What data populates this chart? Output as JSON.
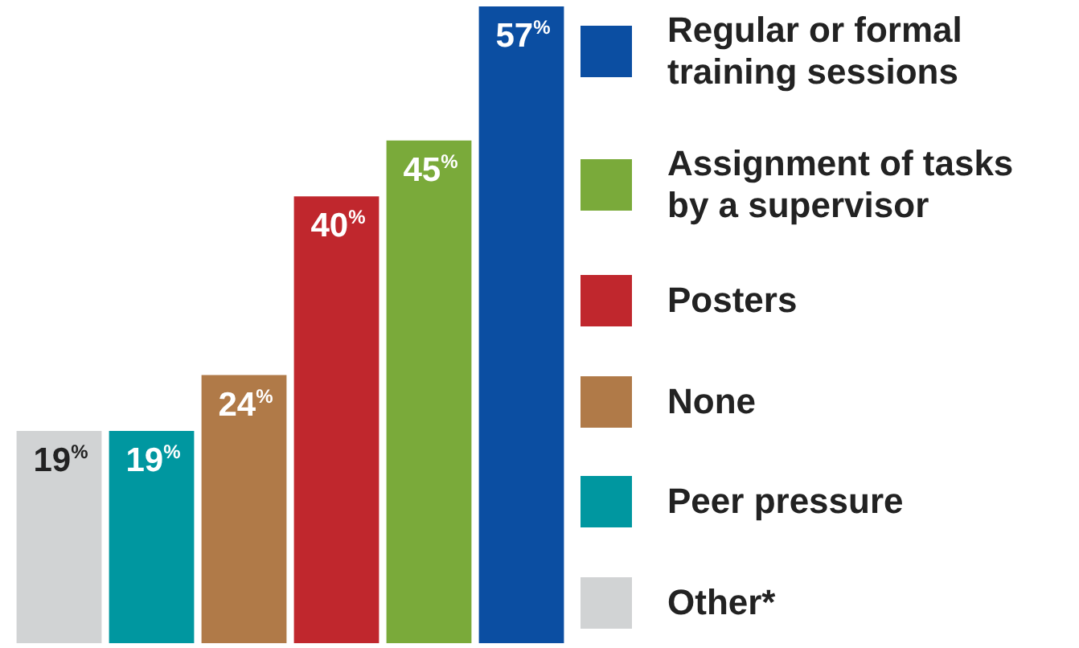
{
  "chart_data": {
    "type": "bar",
    "categories": [
      null
    ],
    "series": [
      {
        "name": "Other*",
        "color": "#d1d3d4",
        "values": [
          19
        ],
        "value_labels": [
          "19$^{%}$"
        ]
      },
      {
        "name": "Peer pressure",
        "color": "#0097a0",
        "values": [
          19
        ],
        "value_labels": [
          "19$^{%}$"
        ]
      },
      {
        "name": "None",
        "color": "#b07a48",
        "values": [
          24
        ],
        "value_labels": [
          "24$^{%}$"
        ]
      },
      {
        "name": "Posters",
        "color": "#c0272d",
        "values": [
          40
        ],
        "value_labels": [
          "40$^{%}$"
        ]
      },
      {
        "name": "Assignment of tasks by a supervisor",
        "color": "#7aaa3a",
        "values": [
          45
        ],
        "value_labels": [
          "45$^{%}$"
        ]
      },
      {
        "name": "Regular or formal training sessions",
        "color": "#0b4ea2",
        "values": [
          57
        ],
        "value_labels": [
          "57$^{%}$"
        ]
      }
    ],
    "ylim": [
      0,
      57
    ],
    "legend": "right",
    "tick_labels": false
  }
}
